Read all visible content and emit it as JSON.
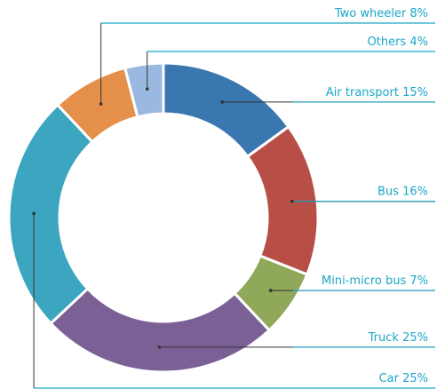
{
  "chart_data": {
    "type": "donut",
    "categories": [
      "Air transport",
      "Bus",
      "Mini-micro bus",
      "Truck",
      "Car",
      "Two wheeler",
      "Others"
    ],
    "values": [
      15,
      16,
      7,
      25,
      25,
      8,
      4
    ],
    "value_labels": [
      "15%",
      "16%",
      "7%",
      "25%",
      "25%",
      "8%",
      "4%"
    ],
    "colors": [
      "#3a76b0",
      "#b84f47",
      "#8fa85a",
      "#7b6096",
      "#3ca5bf",
      "#e5904a",
      "#9bb8e0"
    ]
  }
}
